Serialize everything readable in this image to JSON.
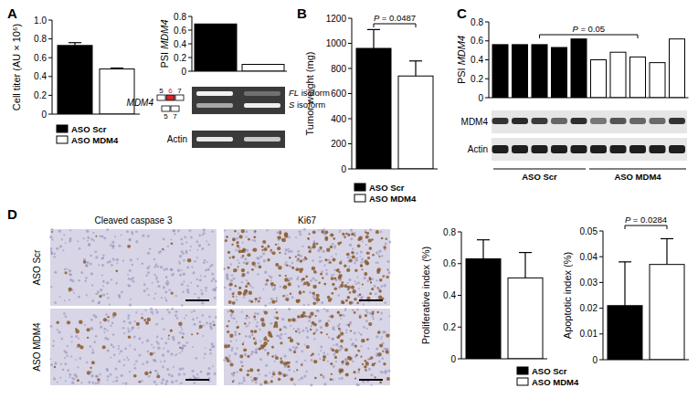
{
  "chart_data": [
    {
      "type": "bar",
      "y_label": "Cell titer (AU × 10⁶)",
      "categories": [
        null
      ],
      "series": [
        {
          "name": "ASO Scr",
          "color": "#000000",
          "values": [
            0.73
          ],
          "errors": [
            0.03
          ]
        },
        {
          "name": "ASO MDM4",
          "color": "#ffffff",
          "values": [
            0.48
          ],
          "errors": [
            0.01
          ]
        }
      ],
      "ylim": [
        0,
        1
      ],
      "yticks": [
        0,
        0.2,
        0.4,
        0.6,
        0.8,
        {
          "value": 1,
          "label": "1.0"
        }
      ],
      "legend": "bottom"
    },
    {
      "type": "bar",
      "y_label": "PSI MDM4",
      "categories": [
        null,
        null
      ],
      "values": [
        0.69,
        0.1
      ],
      "colors": [
        "#000000",
        "#ffffff"
      ],
      "ylim": [
        0,
        0.8
      ],
      "yticks": [
        0,
        0.2,
        0.4,
        0.6,
        0.8
      ]
    },
    {
      "type": "bar",
      "y_label": "Tumor weight (mg)",
      "categories": [
        null
      ],
      "series": [
        {
          "name": "ASO Scr",
          "color": "#000000",
          "values": [
            960
          ],
          "errors": [
            150
          ]
        },
        {
          "name": "ASO MDM4",
          "color": "#ffffff",
          "values": [
            740
          ],
          "errors": [
            120
          ]
        }
      ],
      "ylim": [
        0,
        1200
      ],
      "yticks": [
        0,
        200,
        400,
        600,
        800,
        1000,
        1200
      ],
      "legend": "bottom",
      "annotations": [
        "P = 0.0487"
      ]
    },
    {
      "type": "bar",
      "y_label": "PSI MDM4",
      "categories": [
        null,
        null,
        null,
        null,
        null,
        null,
        null,
        null,
        null,
        null
      ],
      "values": [
        0.56,
        0.56,
        0.56,
        0.53,
        0.62,
        0.4,
        0.48,
        0.43,
        0.37,
        0.62
      ],
      "colors": [
        "#000000",
        "#000000",
        "#000000",
        "#000000",
        "#000000",
        "#ffffff",
        "#ffffff",
        "#ffffff",
        "#ffffff",
        "#ffffff"
      ],
      "ylim": [
        0,
        0.8
      ],
      "yticks": [
        0,
        0.2,
        0.4,
        0.6,
        0.8
      ],
      "annotations": [
        "P = 0.05"
      ]
    },
    {
      "type": "bar",
      "y_label": "Proliferative index (%)",
      "categories": [
        null,
        null
      ],
      "values": [
        0.63,
        0.51
      ],
      "errors": [
        0.12,
        0.16
      ],
      "colors": [
        "#000000",
        "#ffffff"
      ],
      "ylim": [
        0,
        0.8
      ],
      "yticks": [
        0,
        0.2,
        0.4,
        0.6,
        0.8
      ]
    },
    {
      "type": "bar",
      "y_label": "Apoptotic index (%)",
      "categories": [
        null
      ],
      "series": [
        {
          "name": "ASO Scr",
          "color": "#000000",
          "values": [
            0.021
          ],
          "errors": [
            0.017
          ]
        },
        {
          "name": "ASO MDM4",
          "color": "#ffffff",
          "values": [
            0.037
          ],
          "errors": [
            0.01
          ]
        }
      ],
      "ylim": [
        0,
        0.05
      ],
      "yticks": [
        0,
        0.01,
        0.02,
        0.03,
        0.04,
        0.05
      ],
      "legend": "bottom",
      "annotations": [
        "P = 0.0284"
      ]
    }
  ],
  "panel_labels": [
    "A",
    "B",
    "C",
    "D"
  ],
  "gel": {
    "gene": "MDM4",
    "exons_full": [
      5,
      6,
      7
    ],
    "exons_skipped": [
      5,
      7
    ],
    "isoforms": [
      "FL isoform",
      "S isoform"
    ],
    "control": "Actin"
  },
  "blot": {
    "rows": [
      "MDM4",
      "Actin"
    ],
    "groups": [
      "ASO Scr",
      "ASO MDM4"
    ]
  },
  "ihc": {
    "columns": [
      "Cleaved caspase 3",
      "Ki67"
    ],
    "rows": [
      "ASO Scr",
      "ASO MDM4"
    ]
  }
}
